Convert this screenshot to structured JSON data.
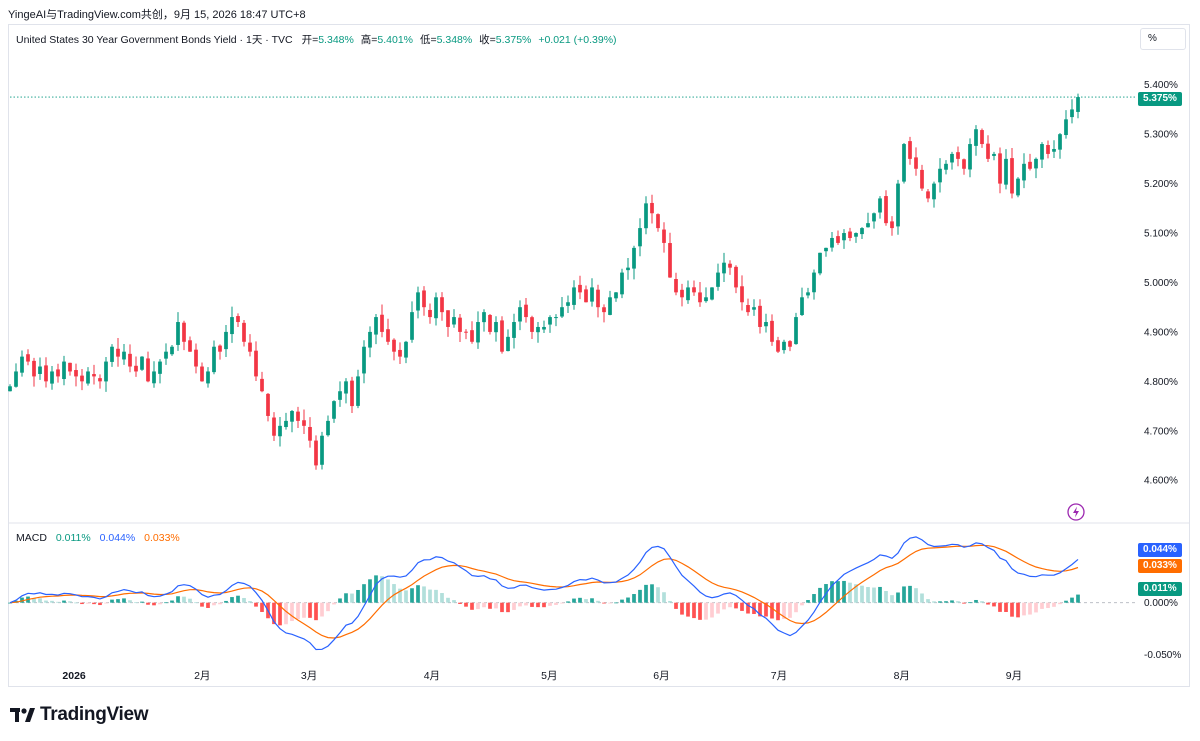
{
  "header": {
    "watermark": "YingeAI与TradingView.com共创，9月 15, 2026 18:47 UTC+8"
  },
  "legend": {
    "title": "United States 30 Year Government Bonds Yield · 1天 · TVC",
    "open_label": "开=",
    "open": "5.348%",
    "high_label": "高=",
    "high": "5.401%",
    "low_label": "低=",
    "low": "5.348%",
    "close_label": "收=",
    "close": "5.375%",
    "change": "+0.021 (+0.39%)"
  },
  "scale_button": {
    "label": "%"
  },
  "macd_legend": {
    "label": "MACD",
    "hist": "0.011%",
    "macd": "0.044%",
    "signal": "0.033%"
  },
  "branding": {
    "name": "TradingView",
    "logo_icon": "tradingview-logo-icon"
  },
  "colors": {
    "up": "#089981",
    "down": "#f23645",
    "macd": "#2962ff",
    "signal": "#ff6d00",
    "hist_up_strong": "#26a69a",
    "hist_up_weak": "#b2dfdb",
    "hist_down_strong": "#ff5252",
    "hist_down_weak": "#ffcdd2"
  },
  "chart_data": [
    {
      "type": "candlestick",
      "title": "United States 30 Year Government Bonds Yield",
      "unit": "%",
      "y_ticks": [
        "5.400%",
        "5.300%",
        "5.200%",
        "5.100%",
        "5.000%",
        "4.900%",
        "4.800%",
        "4.700%",
        "4.600%"
      ],
      "ylim": [
        4.56,
        5.45
      ],
      "x_ticks": [
        "2026",
        "2月",
        "3月",
        "4月",
        "5月",
        "6月",
        "7月",
        "8月",
        "9月"
      ],
      "last_price_label": "5.375%",
      "last_price": 5.375,
      "close": [
        4.79,
        4.82,
        4.85,
        4.84,
        4.81,
        4.83,
        4.8,
        4.82,
        4.81,
        4.84,
        4.82,
        4.81,
        4.8,
        4.82,
        4.81,
        4.8,
        4.84,
        4.87,
        4.85,
        4.86,
        4.83,
        4.82,
        4.85,
        4.8,
        4.82,
        4.84,
        4.86,
        4.87,
        4.92,
        4.88,
        4.86,
        4.83,
        4.8,
        4.82,
        4.87,
        4.86,
        4.9,
        4.93,
        4.92,
        4.88,
        4.86,
        4.81,
        4.78,
        4.73,
        4.69,
        4.71,
        4.72,
        4.74,
        4.72,
        4.71,
        4.68,
        4.63,
        4.69,
        4.72,
        4.76,
        4.78,
        4.8,
        4.75,
        4.81,
        4.87,
        4.9,
        4.93,
        4.9,
        4.88,
        4.86,
        4.85,
        4.88,
        4.94,
        4.98,
        4.95,
        4.93,
        4.97,
        4.94,
        4.91,
        4.93,
        4.9,
        4.9,
        4.88,
        4.92,
        4.94,
        4.9,
        4.92,
        4.86,
        4.89,
        4.92,
        4.95,
        4.93,
        4.9,
        4.91,
        4.91,
        4.93,
        4.93,
        4.95,
        4.96,
        4.99,
        4.98,
        4.96,
        4.99,
        4.95,
        4.94,
        4.97,
        4.98,
        5.02,
        5.03,
        5.07,
        5.11,
        5.16,
        5.14,
        5.11,
        5.08,
        5.01,
        4.98,
        4.97,
        4.99,
        4.98,
        4.96,
        4.97,
        4.99,
        5.02,
        5.04,
        5.03,
        4.99,
        4.96,
        4.94,
        4.95,
        4.91,
        4.92,
        4.88,
        4.86,
        4.88,
        4.87,
        4.93,
        4.97,
        4.98,
        5.02,
        5.06,
        5.07,
        5.09,
        5.08,
        5.1,
        5.09,
        5.1,
        5.11,
        5.12,
        5.14,
        5.17,
        5.12,
        5.11,
        5.2,
        5.28,
        5.25,
        5.23,
        5.19,
        5.17,
        5.2,
        5.23,
        5.24,
        5.26,
        5.25,
        5.23,
        5.28,
        5.31,
        5.28,
        5.25,
        5.26,
        5.2,
        5.25,
        5.18,
        5.21,
        5.24,
        5.23,
        5.25,
        5.28,
        5.26,
        5.27,
        5.3,
        5.33,
        5.35,
        5.375
      ]
    },
    {
      "type": "macd",
      "y_ticks": [
        "0.000%",
        "-0.050%"
      ],
      "ylim": [
        -0.06,
        0.07
      ],
      "macd_label": "0.044%",
      "macd_last": 0.044,
      "signal_label": "0.033%",
      "signal_last": 0.033,
      "hist_label": "0.011%",
      "hist_last": 0.011
    }
  ]
}
